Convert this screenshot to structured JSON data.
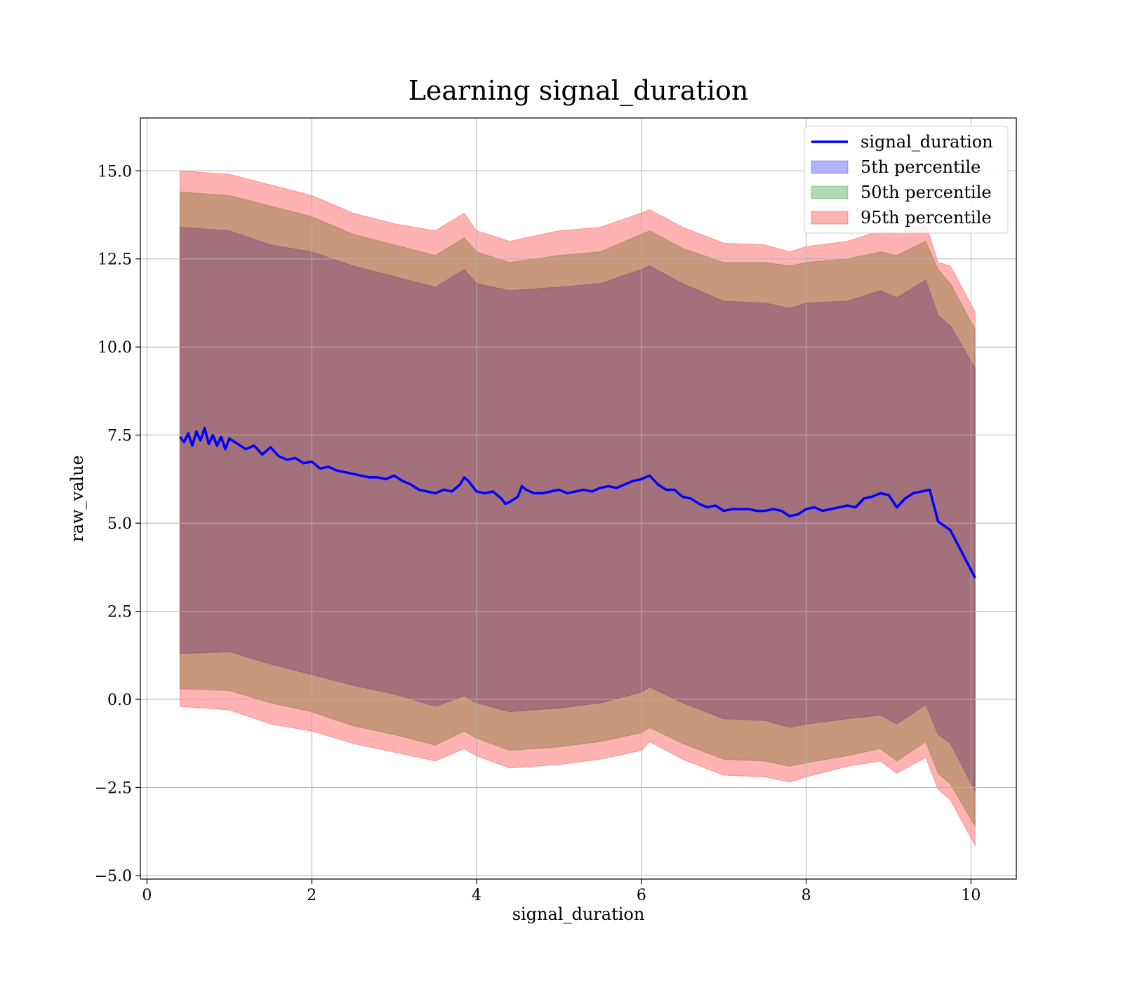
{
  "chart_data": {
    "type": "line",
    "title": "Learning signal_duration",
    "xlabel": "signal_duration",
    "ylabel": "raw_value",
    "xlim": [
      -0.08,
      10.55
    ],
    "ylim": [
      -5.1,
      16.5
    ],
    "xticks": [
      0,
      2,
      4,
      6,
      8,
      10
    ],
    "xtick_labels": [
      "0",
      "2",
      "4",
      "6",
      "8",
      "10"
    ],
    "yticks": [
      -5.0,
      -2.5,
      0.0,
      2.5,
      5.0,
      7.5,
      10.0,
      12.5,
      15.0
    ],
    "ytick_labels": [
      "−5.0",
      "−2.5",
      "0.0",
      "2.5",
      "5.0",
      "7.5",
      "10.0",
      "12.5",
      "15.0"
    ],
    "grid": true,
    "legend_position": "top-right",
    "line": {
      "name": "signal_duration",
      "color": "#0000ff",
      "x": [
        0.4,
        0.45,
        0.5,
        0.55,
        0.6,
        0.65,
        0.7,
        0.75,
        0.8,
        0.85,
        0.9,
        0.95,
        1.0,
        1.1,
        1.2,
        1.3,
        1.4,
        1.5,
        1.6,
        1.7,
        1.8,
        1.9,
        2.0,
        2.1,
        2.2,
        2.3,
        2.4,
        2.5,
        2.6,
        2.7,
        2.8,
        2.9,
        3.0,
        3.1,
        3.2,
        3.3,
        3.4,
        3.5,
        3.6,
        3.7,
        3.8,
        3.85,
        3.9,
        4.0,
        4.1,
        4.2,
        4.3,
        4.35,
        4.4,
        4.5,
        4.55,
        4.6,
        4.7,
        4.8,
        4.9,
        5.0,
        5.1,
        5.2,
        5.3,
        5.4,
        5.5,
        5.6,
        5.7,
        5.8,
        5.9,
        6.0,
        6.1,
        6.2,
        6.3,
        6.4,
        6.5,
        6.6,
        6.7,
        6.8,
        6.9,
        7.0,
        7.1,
        7.2,
        7.3,
        7.4,
        7.5,
        7.6,
        7.7,
        7.8,
        7.9,
        8.0,
        8.1,
        8.2,
        8.3,
        8.4,
        8.5,
        8.6,
        8.7,
        8.8,
        8.9,
        9.0,
        9.1,
        9.2,
        9.3,
        9.4,
        9.5,
        9.6,
        9.75,
        10.05
      ],
      "y": [
        7.45,
        7.3,
        7.55,
        7.2,
        7.6,
        7.35,
        7.7,
        7.25,
        7.5,
        7.2,
        7.45,
        7.1,
        7.4,
        7.25,
        7.1,
        7.2,
        6.95,
        7.15,
        6.9,
        6.8,
        6.85,
        6.7,
        6.75,
        6.55,
        6.6,
        6.5,
        6.45,
        6.4,
        6.35,
        6.3,
        6.3,
        6.25,
        6.35,
        6.2,
        6.1,
        5.95,
        5.9,
        5.85,
        5.95,
        5.9,
        6.1,
        6.3,
        6.2,
        5.9,
        5.85,
        5.9,
        5.7,
        5.55,
        5.6,
        5.75,
        6.05,
        5.95,
        5.85,
        5.85,
        5.9,
        5.95,
        5.85,
        5.9,
        5.95,
        5.9,
        6.0,
        6.05,
        6.0,
        6.1,
        6.2,
        6.25,
        6.35,
        6.1,
        5.95,
        5.95,
        5.75,
        5.7,
        5.55,
        5.45,
        5.5,
        5.35,
        5.4,
        5.4,
        5.4,
        5.35,
        5.35,
        5.4,
        5.35,
        5.2,
        5.25,
        5.4,
        5.45,
        5.35,
        5.4,
        5.45,
        5.5,
        5.45,
        5.7,
        5.75,
        5.85,
        5.8,
        5.45,
        5.7,
        5.85,
        5.9,
        5.95,
        5.05,
        4.8,
        3.45
      ]
    },
    "bands": [
      {
        "name": "5th percentile",
        "color": "#0000ff",
        "x": [
          0.4,
          1.0,
          1.5,
          2.0,
          2.5,
          3.0,
          3.5,
          3.85,
          4.0,
          4.4,
          5.0,
          5.5,
          6.0,
          6.1,
          6.5,
          7.0,
          7.5,
          7.8,
          8.0,
          8.5,
          8.9,
          9.1,
          9.45,
          9.6,
          9.75,
          10.05
        ],
        "lower": [
          1.3,
          1.35,
          1.0,
          0.7,
          0.4,
          0.15,
          -0.2,
          0.1,
          -0.1,
          -0.35,
          -0.25,
          -0.1,
          0.2,
          0.35,
          -0.1,
          -0.55,
          -0.6,
          -0.8,
          -0.7,
          -0.55,
          -0.45,
          -0.7,
          -0.15,
          -1.0,
          -1.25,
          -2.6
        ],
        "upper": [
          13.4,
          13.3,
          12.9,
          12.7,
          12.3,
          12.0,
          11.7,
          12.2,
          11.8,
          11.6,
          11.7,
          11.8,
          12.2,
          12.3,
          11.8,
          11.3,
          11.25,
          11.1,
          11.25,
          11.3,
          11.6,
          11.4,
          11.9,
          10.9,
          10.6,
          9.4
        ]
      },
      {
        "name": "50th percentile",
        "color": "#008000",
        "x": [
          0.4,
          1.0,
          1.5,
          2.0,
          2.5,
          3.0,
          3.5,
          3.85,
          4.0,
          4.4,
          5.0,
          5.5,
          6.0,
          6.1,
          6.5,
          7.0,
          7.5,
          7.8,
          8.0,
          8.5,
          8.9,
          9.1,
          9.45,
          9.6,
          9.75,
          10.05
        ],
        "lower": [
          0.3,
          0.25,
          -0.1,
          -0.35,
          -0.75,
          -1.0,
          -1.3,
          -0.9,
          -1.1,
          -1.45,
          -1.35,
          -1.2,
          -0.95,
          -0.8,
          -1.25,
          -1.7,
          -1.75,
          -1.9,
          -1.8,
          -1.6,
          -1.4,
          -1.75,
          -1.2,
          -2.1,
          -2.4,
          -3.6
        ],
        "upper": [
          14.4,
          14.3,
          14.0,
          13.7,
          13.2,
          12.9,
          12.6,
          13.1,
          12.7,
          12.4,
          12.6,
          12.7,
          13.2,
          13.3,
          12.8,
          12.4,
          12.4,
          12.3,
          12.4,
          12.5,
          12.7,
          12.6,
          13.0,
          12.2,
          11.8,
          10.5
        ]
      },
      {
        "name": "95th percentile",
        "color": "#ff0000",
        "x": [
          0.4,
          1.0,
          1.5,
          2.0,
          2.5,
          3.0,
          3.5,
          3.85,
          4.0,
          4.4,
          5.0,
          5.5,
          6.0,
          6.1,
          6.5,
          7.0,
          7.5,
          7.8,
          8.0,
          8.5,
          8.9,
          9.1,
          9.45,
          9.6,
          9.75,
          10.05
        ],
        "lower": [
          -0.2,
          -0.3,
          -0.7,
          -0.9,
          -1.25,
          -1.5,
          -1.75,
          -1.4,
          -1.6,
          -1.95,
          -1.85,
          -1.7,
          -1.45,
          -1.2,
          -1.7,
          -2.15,
          -2.2,
          -2.35,
          -2.2,
          -1.9,
          -1.75,
          -2.1,
          -1.65,
          -2.55,
          -2.85,
          -4.15
        ],
        "upper": [
          15.0,
          14.9,
          14.6,
          14.3,
          13.8,
          13.5,
          13.3,
          13.8,
          13.3,
          13.0,
          13.3,
          13.4,
          13.8,
          13.9,
          13.4,
          12.95,
          12.9,
          12.7,
          12.85,
          13.0,
          13.3,
          13.2,
          13.5,
          12.4,
          12.3,
          11.0
        ]
      }
    ]
  }
}
